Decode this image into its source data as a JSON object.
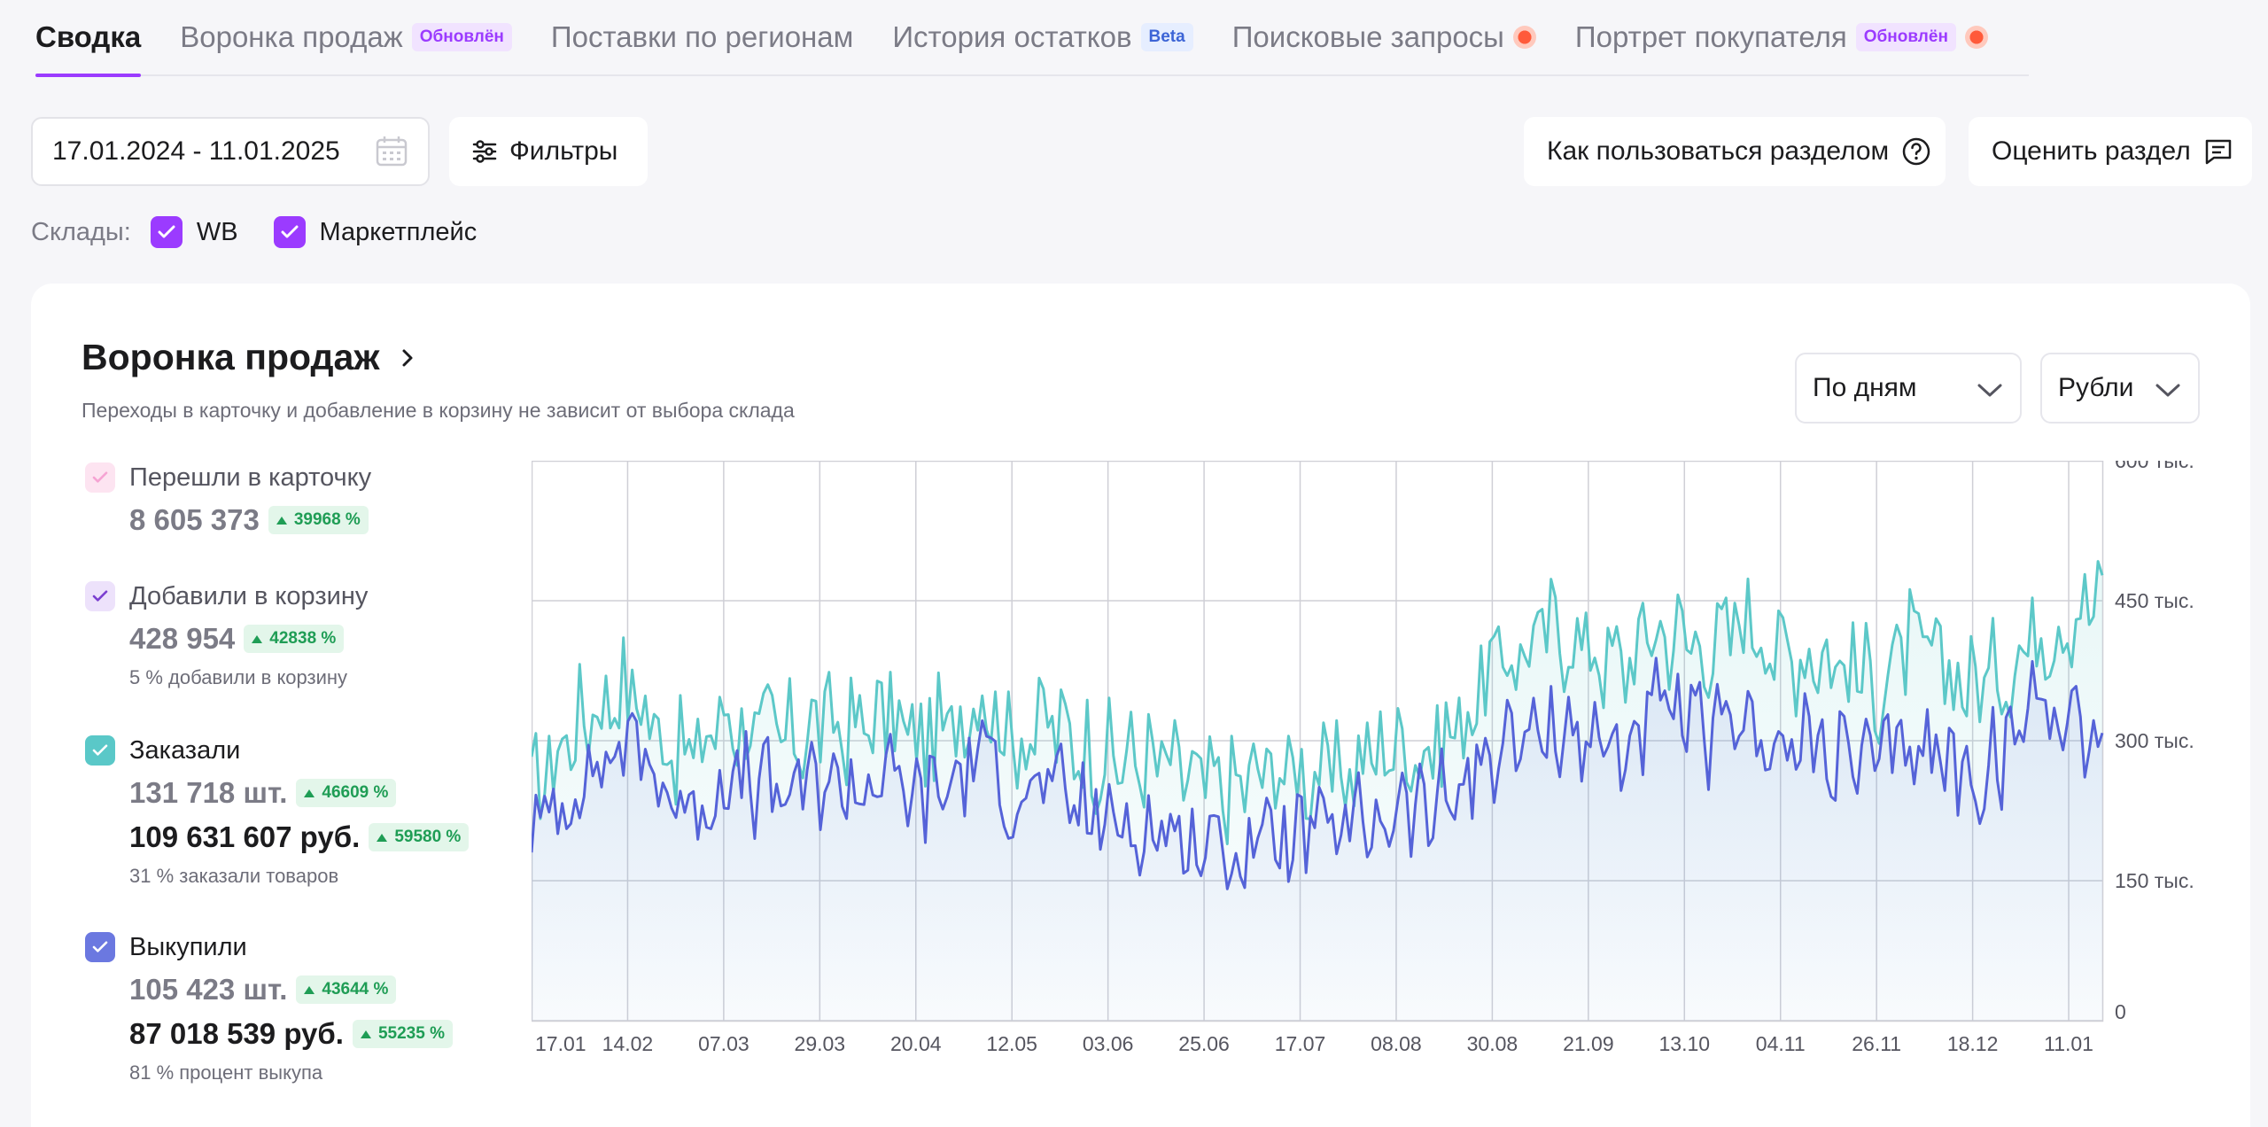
{
  "tabs": [
    {
      "label": "Сводка",
      "active": true,
      "badge": null
    },
    {
      "label": "Воронка продаж",
      "badge": {
        "text": "Обновлён",
        "style": "purple"
      }
    },
    {
      "label": "Поставки по регионам",
      "badge": null
    },
    {
      "label": "История остатков",
      "badge": {
        "text": "Beta",
        "style": "blue"
      }
    },
    {
      "label": "Поисковые запросы",
      "dot": true
    },
    {
      "label": "Портрет покупателя",
      "badge": {
        "text": "Обновлён",
        "style": "purple"
      },
      "dot": true
    }
  ],
  "toolbar": {
    "date_range": "17.01.2024 - 11.01.2025",
    "filters_label": "Фильтры",
    "help_label": "Как пользоваться разделом",
    "rate_label": "Оценить раздел"
  },
  "storages": {
    "label": "Склады:",
    "options": [
      {
        "label": "WB",
        "checked": true
      },
      {
        "label": "Маркетплейс",
        "checked": true
      }
    ]
  },
  "section": {
    "title": "Воронка продаж",
    "subtitle": "Переходы в карточку и добавление в корзину не зависит от выбора склада",
    "period_select": "По дням",
    "unit_select": "Рубли"
  },
  "metrics": {
    "views": {
      "label": "Перешли в карточку",
      "value": "8 605 373",
      "change": "39968 %",
      "color": "#f6a3d3"
    },
    "cart": {
      "label": "Добавили в корзину",
      "value": "428 954",
      "change": "42838 %",
      "note": "5 % добавили в корзину",
      "color": "#b28ce8"
    },
    "orders": {
      "label": "Заказали",
      "value": "131 718 шт.",
      "change": "46609 %",
      "value_rub": "109 631 607 руб.",
      "change_rub": "59580 %",
      "note": "31 % заказали товаров",
      "color": "#5ac8c8"
    },
    "buyouts": {
      "label": "Выкупили",
      "value": "105 423 шт.",
      "change": "43644 %",
      "value_rub": "87 018 539 руб.",
      "change_rub": "55235 %",
      "note": "81 % процент выкупа",
      "color": "#6b78e0"
    }
  },
  "chart_data": {
    "type": "line",
    "x_tick_labels": [
      "17.01",
      "14.02",
      "07.03",
      "29.03",
      "20.04",
      "12.05",
      "03.06",
      "25.06",
      "17.07",
      "08.08",
      "30.08",
      "21.09",
      "13.10",
      "04.11",
      "26.11",
      "18.12",
      "11.01"
    ],
    "y_tick_labels": [
      "0",
      "150 тыс.",
      "300 тыс.",
      "450 тыс.",
      "600 тыс."
    ],
    "ylim": [
      0,
      600000
    ],
    "grid": true,
    "series": [
      {
        "name": "Заказали",
        "color": "#5cc8c8",
        "approx_values_thousands": [
          240,
          300,
          340,
          360,
          310,
          280,
          330,
          310,
          300,
          320,
          310,
          330,
          300,
          310,
          360,
          300,
          320,
          300,
          280,
          280,
          270,
          250,
          250,
          270,
          270,
          260,
          280,
          300,
          290,
          320,
          380,
          400,
          420,
          400,
          380,
          420,
          410,
          400,
          440,
          390,
          400,
          380,
          360,
          400,
          380,
          360,
          380,
          420,
          440,
          450
        ]
      },
      {
        "name": "Выкупили",
        "color": "#5563d8",
        "approx_values_thousands": [
          200,
          240,
          270,
          300,
          260,
          220,
          260,
          250,
          240,
          260,
          250,
          260,
          240,
          250,
          290,
          240,
          250,
          230,
          210,
          210,
          200,
          190,
          180,
          200,
          200,
          200,
          210,
          230,
          220,
          250,
          290,
          300,
          320,
          300,
          290,
          330,
          320,
          300,
          330,
          280,
          300,
          280,
          270,
          300,
          280,
          260,
          290,
          350,
          330,
          300
        ]
      }
    ]
  }
}
